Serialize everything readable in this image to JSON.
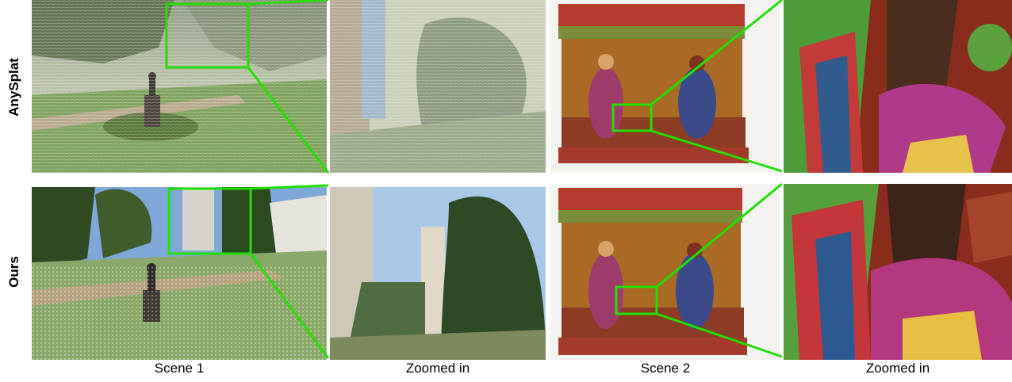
{
  "rows": [
    {
      "label": "AnySplat"
    },
    {
      "label": "Ours"
    }
  ],
  "columns": [
    {
      "label": "Scene 1"
    },
    {
      "label": "Zoomed in"
    },
    {
      "label": "Scene 2"
    },
    {
      "label": "Zoomed in"
    }
  ],
  "colors": {
    "highlight": "#22e000",
    "background": "#ffffff"
  }
}
